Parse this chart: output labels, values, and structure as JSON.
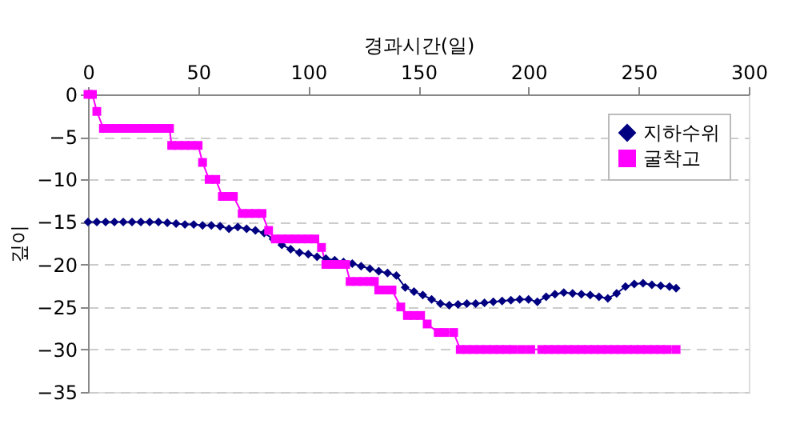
{
  "chart_data": {
    "type": "line",
    "xlabel": "경과시간(일)",
    "ylabel": "깊이",
    "xlim": [
      0,
      300
    ],
    "xticks": [
      0,
      50,
      100,
      150,
      200,
      250,
      300
    ],
    "ylim": [
      -35,
      0
    ],
    "yticks": [
      0,
      -5,
      -10,
      -15,
      -20,
      -25,
      -30,
      -35
    ],
    "grid": "y",
    "legend": "top right",
    "series": [
      {
        "name": "지하수위",
        "color": "#000080",
        "marker": "diamond",
        "x": [
          0,
          4,
          8,
          12,
          16,
          20,
          24,
          28,
          32,
          36,
          40,
          44,
          48,
          52,
          56,
          60,
          64,
          68,
          72,
          76,
          80,
          84,
          88,
          92,
          96,
          100,
          104,
          108,
          112,
          116,
          120,
          124,
          128,
          132,
          136,
          140,
          144,
          148,
          152,
          156,
          160,
          164,
          168,
          172,
          176,
          180,
          184,
          188,
          192,
          196,
          200,
          204,
          208,
          212,
          216,
          220,
          224,
          228,
          232,
          236,
          240,
          244,
          248,
          252,
          256,
          260,
          264,
          267
        ],
        "values": [
          -15,
          -15,
          -15,
          -15,
          -15,
          -15,
          -15,
          -15,
          -15,
          -15.1,
          -15.2,
          -15.3,
          -15.3,
          -15.4,
          -15.4,
          -15.5,
          -15.8,
          -15.6,
          -15.8,
          -16,
          -16.3,
          -17,
          -17.7,
          -18.2,
          -18.6,
          -18.8,
          -19.1,
          -19.3,
          -19.5,
          -19.7,
          -19.9,
          -20.2,
          -20.5,
          -20.8,
          -21,
          -21.3,
          -22.7,
          -23.2,
          -23.6,
          -24.1,
          -24.6,
          -24.8,
          -24.7,
          -24.6,
          -24.6,
          -24.5,
          -24.4,
          -24.3,
          -24.2,
          -24.1,
          -24.1,
          -24.4,
          -23.8,
          -23.5,
          -23.3,
          -23.4,
          -23.5,
          -23.6,
          -23.8,
          -24,
          -23.4,
          -22.6,
          -22.3,
          -22.2,
          -22.4,
          -22.5,
          -22.6,
          -22.8
        ]
      },
      {
        "name": "굴착고",
        "color": "#ff00ff",
        "marker": "square",
        "x": [
          0,
          2,
          4,
          7,
          10,
          13,
          16,
          19,
          22,
          25,
          28,
          31,
          34,
          37,
          38,
          41,
          44,
          47,
          50,
          52,
          55,
          58,
          61,
          64,
          66,
          70,
          73,
          76,
          79,
          82,
          85,
          88,
          91,
          94,
          97,
          100,
          103,
          106,
          108,
          111,
          114,
          117,
          119,
          122,
          125,
          128,
          130,
          132,
          135,
          138,
          142,
          145,
          148,
          151,
          154,
          159,
          162,
          166,
          169,
          172,
          175,
          178,
          181,
          184,
          187,
          190,
          193,
          197,
          201,
          206,
          209,
          212,
          215,
          218,
          221,
          224,
          227,
          230,
          233,
          236,
          239,
          242,
          245,
          248,
          251,
          254,
          257,
          260,
          263,
          267
        ],
        "values": [
          0,
          0,
          -2,
          -4,
          -4,
          -4,
          -4,
          -4,
          -4,
          -4,
          -4,
          -4,
          -4,
          -4,
          -6,
          -6,
          -6,
          -6,
          -6,
          -8,
          -10,
          -10,
          -12,
          -12,
          -12,
          -14,
          -14,
          -14,
          -14,
          -16,
          -17,
          -17,
          -17,
          -17,
          -17,
          -17,
          -17,
          -18,
          -20,
          -20,
          -20,
          -20,
          -22,
          -22,
          -22,
          -22,
          -22,
          -23,
          -23,
          -23,
          -25,
          -26,
          -26,
          -26,
          -27,
          -28,
          -28,
          -28,
          -30,
          -30,
          -30,
          -30,
          -30,
          -30,
          -30,
          -30,
          -30,
          -30,
          -30,
          -30,
          -30,
          -30,
          -30,
          -30,
          -30,
          -30,
          -30,
          -30,
          -30,
          -30,
          -30,
          -30,
          -30,
          -30,
          -30,
          -30,
          -30,
          -30,
          -30,
          -30
        ]
      }
    ]
  }
}
